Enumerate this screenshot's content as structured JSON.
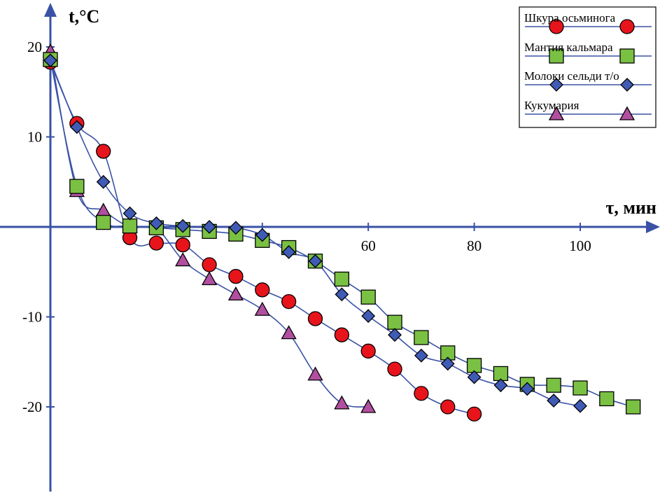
{
  "chart_data": {
    "type": "line",
    "xlabel": "τ, мин",
    "ylabel": "t,°C",
    "xlim": [
      0,
      115
    ],
    "ylim": [
      -29,
      24
    ],
    "x_ticks": [
      20,
      40,
      60,
      80,
      100
    ],
    "x_tick_labels": [
      "",
      "",
      "60",
      "80",
      "100"
    ],
    "y_ticks": [
      -20,
      -10,
      10,
      20
    ],
    "y_tick_labels": [
      "-20",
      "-10",
      "10",
      "20"
    ],
    "grid": false,
    "legend_position": "top-right",
    "series": [
      {
        "name": "Шкура осьминога",
        "marker": "circle",
        "color": "#e8141c",
        "line_color": "#3a52a6",
        "x": [
          0,
          5,
          10,
          15,
          20,
          25,
          30,
          35,
          40,
          45,
          50,
          55,
          60,
          65,
          70,
          75,
          80
        ],
        "y": [
          18.3,
          11.5,
          8.4,
          -1.2,
          -1.8,
          -2.0,
          -4.2,
          -5.5,
          -7.0,
          -8.3,
          -10.2,
          -12.0,
          -13.8,
          -15.8,
          -18.5,
          -20.0,
          -20.8
        ]
      },
      {
        "name": "Мантия кальмара",
        "marker": "square",
        "color": "#7ac143",
        "line_color": "#3a52a6",
        "x": [
          0,
          5,
          10,
          15,
          20,
          25,
          30,
          35,
          40,
          45,
          50,
          55,
          60,
          65,
          70,
          75,
          80,
          85,
          90,
          95,
          100,
          105,
          110
        ],
        "y": [
          18.6,
          4.5,
          0.5,
          0.1,
          -0.1,
          -0.3,
          -0.5,
          -0.8,
          -1.5,
          -2.3,
          -3.8,
          -5.8,
          -7.8,
          -10.6,
          -12.3,
          -14.0,
          -15.4,
          -16.3,
          -17.5,
          -17.6,
          -17.9,
          -19.1,
          -20.0
        ]
      },
      {
        "name": "Молоки сельди т/о",
        "marker": "diamond",
        "color": "#3f5bb5",
        "line_color": "#3a52a6",
        "x": [
          0,
          5,
          10,
          15,
          20,
          25,
          30,
          35,
          40,
          45,
          50,
          55,
          60,
          65,
          70,
          75,
          80,
          85,
          90,
          95,
          100
        ],
        "y": [
          18.5,
          11.1,
          5.0,
          1.5,
          0.4,
          0.1,
          0.0,
          -0.1,
          -0.9,
          -2.8,
          -3.8,
          -7.5,
          -9.9,
          -12.0,
          -14.3,
          -15.2,
          -16.7,
          -17.6,
          -18.0,
          -19.3,
          -19.9
        ]
      },
      {
        "name": "Кукумария",
        "marker": "triangle",
        "color": "#b24fa0",
        "line_color": "#3a52a6",
        "x": [
          0,
          5,
          10,
          15,
          20,
          25,
          30,
          35,
          40,
          45,
          50,
          55,
          60
        ],
        "y": [
          19.5,
          4.0,
          1.8,
          0.0,
          -0.2,
          -3.7,
          -5.8,
          -7.5,
          -9.2,
          -11.8,
          -16.4,
          -19.6,
          -20.0
        ]
      }
    ]
  }
}
